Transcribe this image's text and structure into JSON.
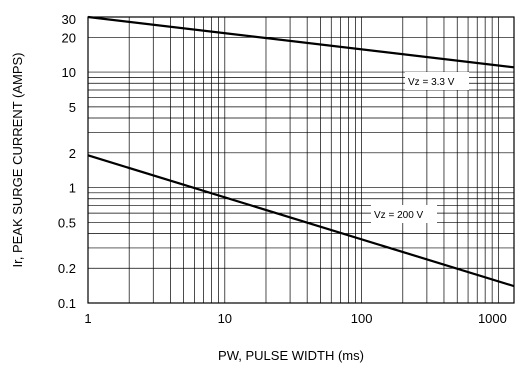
{
  "chart_data": {
    "type": "line",
    "title": "",
    "xlabel": "PW, PULSE WIDTH (ms)",
    "ylabel": "Ir, PEAK SURGE CURRENT (AMPS)",
    "x_scale": "log",
    "y_scale": "log",
    "xlim": [
      1,
      1300
    ],
    "ylim": [
      0.1,
      30
    ],
    "grid": true,
    "x_ticks": [
      {
        "value": 1,
        "label": "1"
      },
      {
        "value": 10,
        "label": "10"
      },
      {
        "value": 100,
        "label": "100"
      },
      {
        "value": 1000,
        "label": "1000"
      }
    ],
    "y_ticks": [
      {
        "value": 0.1,
        "label": "0.1"
      },
      {
        "value": 0.2,
        "label": "0.2"
      },
      {
        "value": 0.5,
        "label": "0.5"
      },
      {
        "value": 1,
        "label": "1"
      },
      {
        "value": 2,
        "label": "2"
      },
      {
        "value": 5,
        "label": "5"
      },
      {
        "value": 10,
        "label": "10"
      },
      {
        "value": 20,
        "label": "20"
      },
      {
        "value": 30,
        "label": "30"
      }
    ],
    "series": [
      {
        "name": "Vz = 3.3 V",
        "x": [
          1,
          1300
        ],
        "y": [
          30,
          11
        ]
      },
      {
        "name": "Vz = 200 V",
        "x": [
          1,
          1300
        ],
        "y": [
          1.9,
          0.14
        ]
      }
    ],
    "annotations": [
      {
        "text": "Vz = 3.3 V",
        "series": 0
      },
      {
        "text": "Vz = 200 V",
        "series": 1
      }
    ]
  }
}
